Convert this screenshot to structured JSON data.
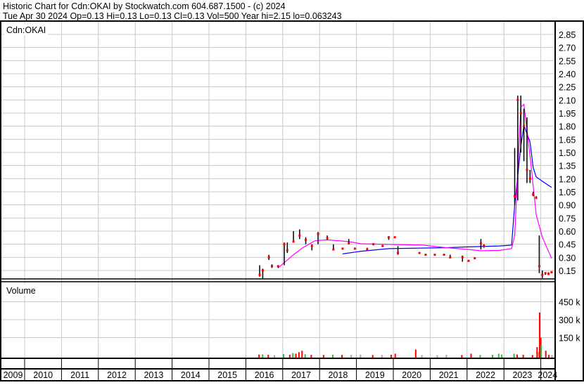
{
  "header": {
    "title": "Historic Chart for Cdn:OKAI by Stockwatch.com 604.687.1500 - (c) 2024",
    "quote": "Tue Apr 30 2024  Op=0.13  Hi=0.13  Lo=0.13  Cl=0.13  Vol=500  Year hi=2.15  lo=0.063243"
  },
  "chart_data": [
    {
      "type": "line",
      "title": "Cdn:OKAI",
      "ylim": [
        0,
        3.0
      ],
      "y_ticks": [
        "0.15",
        "0.30",
        "0.45",
        "0.60",
        "0.75",
        "0.90",
        "1.05",
        "1.20",
        "1.35",
        "1.50",
        "1.65",
        "1.80",
        "1.95",
        "2.10",
        "2.25",
        "2.40",
        "2.55",
        "2.70",
        "2.85"
      ],
      "x_ticks": [
        "2009",
        "2010",
        "2011",
        "2012",
        "2013",
        "2014",
        "2015",
        "2016",
        "2017",
        "2018",
        "2019",
        "2020",
        "2021",
        "2022",
        "2023",
        "2024"
      ],
      "xlim": [
        "2009-01",
        "2024-04-30"
      ],
      "grid": true,
      "colors": {
        "bar": "#000000",
        "close": "#ff0000",
        "ma_short": "#ff00ff",
        "ma_long": "#0000ff"
      },
      "price_bars_fields": [
        "date",
        "high",
        "low",
        "close"
      ],
      "price_bars": [
        [
          "2016-05",
          0.21,
          0.08,
          0.1
        ],
        [
          "2016-06",
          0.17,
          0.06,
          0.15
        ],
        [
          "2016-08",
          0.33,
          0.27,
          0.3
        ],
        [
          "2016-09",
          0.22,
          0.18,
          0.2
        ],
        [
          "2016-11",
          0.21,
          0.18,
          0.2
        ],
        [
          "2017-01",
          0.47,
          0.21,
          0.45
        ],
        [
          "2017-02",
          0.47,
          0.35,
          0.38
        ],
        [
          "2017-04",
          0.6,
          0.47,
          0.48
        ],
        [
          "2017-06",
          0.62,
          0.51,
          0.55
        ],
        [
          "2017-08",
          0.53,
          0.45,
          0.5
        ],
        [
          "2017-10",
          0.45,
          0.38,
          0.43
        ],
        [
          "2017-12",
          0.59,
          0.45,
          0.57
        ],
        [
          "2018-03",
          0.55,
          0.5,
          0.52
        ],
        [
          "2018-05",
          0.45,
          0.38,
          0.39
        ],
        [
          "2018-08",
          0.4,
          0.39,
          0.4
        ],
        [
          "2018-10",
          0.51,
          0.45,
          0.46
        ],
        [
          "2018-12",
          0.4,
          0.39,
          0.4
        ],
        [
          "2019-04",
          0.41,
          0.38,
          0.39
        ],
        [
          "2019-06",
          0.46,
          0.44,
          0.45
        ],
        [
          "2019-09",
          0.43,
          0.42,
          0.43
        ],
        [
          "2019-11",
          0.54,
          0.5,
          0.53
        ],
        [
          "2020-01",
          0.53,
          0.52,
          0.53
        ],
        [
          "2020-02",
          0.43,
          0.33,
          0.35
        ],
        [
          "2020-09",
          0.35,
          0.34,
          0.35
        ],
        [
          "2020-11",
          0.34,
          0.32,
          0.33
        ],
        [
          "2021-02",
          0.33,
          0.32,
          0.33
        ],
        [
          "2021-05",
          0.33,
          0.32,
          0.33
        ],
        [
          "2021-07",
          0.33,
          0.29,
          0.3
        ],
        [
          "2021-11",
          0.32,
          0.25,
          0.3
        ],
        [
          "2022-01",
          0.26,
          0.25,
          0.26
        ],
        [
          "2022-03",
          0.29,
          0.28,
          0.29
        ],
        [
          "2022-05",
          0.51,
          0.39,
          0.46
        ],
        [
          "2022-06",
          0.45,
          0.41,
          0.43
        ],
        [
          "2023-04",
          1.55,
          0.9,
          1.0
        ],
        [
          "2023-05",
          2.15,
          0.95,
          2.1
        ],
        [
          "2023-06",
          2.15,
          1.5,
          1.95
        ],
        [
          "2023-07",
          2.0,
          1.4,
          1.8
        ],
        [
          "2023-08",
          1.9,
          1.15,
          1.3
        ],
        [
          "2023-09",
          1.3,
          1.15,
          1.2
        ],
        [
          "2023-10",
          1.05,
          1.0,
          1.02
        ],
        [
          "2023-11",
          1.0,
          0.98,
          0.98
        ],
        [
          "2023-12",
          0.55,
          0.12,
          0.2
        ],
        [
          "2024-01",
          0.15,
          0.063,
          0.1
        ],
        [
          "2024-02",
          0.13,
          0.1,
          0.12
        ],
        [
          "2024-03",
          0.13,
          0.1,
          0.11
        ],
        [
          "2024-04",
          0.13,
          0.13,
          0.13
        ]
      ],
      "ma_short": [
        [
          "2016-11",
          0.18
        ],
        [
          "2017-04",
          0.33
        ],
        [
          "2017-07",
          0.41
        ],
        [
          "2017-11",
          0.49
        ],
        [
          "2018-03",
          0.5
        ],
        [
          "2018-10",
          0.48
        ],
        [
          "2019-02",
          0.455
        ],
        [
          "2020-10",
          0.44
        ],
        [
          "2021-06",
          0.41
        ],
        [
          "2022-01",
          0.39
        ],
        [
          "2022-05",
          0.375
        ],
        [
          "2022-11",
          0.38
        ],
        [
          "2023-03",
          0.4
        ],
        [
          "2023-04",
          0.55
        ],
        [
          "2023-06",
          2.02
        ],
        [
          "2023-07",
          2.05
        ],
        [
          "2023-09",
          1.46
        ],
        [
          "2023-11",
          0.79
        ],
        [
          "2024-01",
          0.53
        ],
        [
          "2024-04",
          0.29
        ]
      ],
      "ma_long": [
        [
          "2018-08",
          0.34
        ],
        [
          "2019-02",
          0.37
        ],
        [
          "2019-11",
          0.4
        ],
        [
          "2021-05",
          0.41
        ],
        [
          "2022-01",
          0.42
        ],
        [
          "2022-11",
          0.43
        ],
        [
          "2023-03",
          0.44
        ],
        [
          "2023-04",
          0.9
        ],
        [
          "2023-06",
          1.57
        ],
        [
          "2023-07",
          1.81
        ],
        [
          "2023-09",
          1.62
        ],
        [
          "2023-10",
          1.33
        ],
        [
          "2023-11",
          1.22
        ],
        [
          "2024-01",
          1.17
        ],
        [
          "2024-04",
          1.1
        ]
      ]
    },
    {
      "type": "bar",
      "title": "Volume",
      "ylim": [
        0,
        500
      ],
      "y_ticks": [
        "150 k",
        "300 k",
        "450 k"
      ],
      "units": "thousands",
      "colors": {
        "down": "#ff0000",
        "up": "#33bb33",
        "unchanged": "#aaaaaa"
      },
      "volume_fields": [
        "date",
        "volume_k",
        "direction"
      ],
      "volume": [
        [
          "2016-05-10",
          8,
          "down"
        ],
        [
          "2016-06-15",
          10,
          "up"
        ],
        [
          "2016-08-10",
          6,
          "down"
        ],
        [
          "2016-10-10",
          3,
          "unchanged"
        ],
        [
          "2017-01-10",
          12,
          "up"
        ],
        [
          "2017-03-10",
          6,
          "down"
        ],
        [
          "2017-04-10",
          20,
          "up"
        ],
        [
          "2017-05-10",
          15,
          "down"
        ],
        [
          "2017-06-10",
          28,
          "down"
        ],
        [
          "2017-07-10",
          40,
          "down"
        ],
        [
          "2017-08-10",
          10,
          "up"
        ],
        [
          "2017-10-10",
          5,
          "down"
        ],
        [
          "2018-02-10",
          4,
          "down"
        ],
        [
          "2018-05-10",
          6,
          "up"
        ],
        [
          "2018-08-10",
          5,
          "down"
        ],
        [
          "2018-11-10",
          6,
          "unchanged"
        ],
        [
          "2019-02-10",
          8,
          "unchanged"
        ],
        [
          "2019-06-10",
          4,
          "down"
        ],
        [
          "2019-09-10",
          5,
          "unchanged"
        ],
        [
          "2019-12-10",
          6,
          "down"
        ],
        [
          "2020-01-20",
          15,
          "down"
        ],
        [
          "2020-08-10",
          50,
          "down"
        ],
        [
          "2020-10-10",
          4,
          "unchanged"
        ],
        [
          "2021-03-10",
          3,
          "unchanged"
        ],
        [
          "2021-06-10",
          6,
          "unchanged"
        ],
        [
          "2021-11-10",
          4,
          "down"
        ],
        [
          "2022-02-10",
          15,
          "down"
        ],
        [
          "2022-05-10",
          4,
          "up"
        ],
        [
          "2022-09-10",
          5,
          "up"
        ],
        [
          "2022-11-10",
          15,
          "up"
        ],
        [
          "2022-12-10",
          8,
          "up"
        ],
        [
          "2023-04-10",
          15,
          "up"
        ],
        [
          "2023-05-10",
          8,
          "down"
        ],
        [
          "2023-07-10",
          6,
          "down"
        ],
        [
          "2023-10-10",
          4,
          "down"
        ],
        [
          "2023-11-25",
          70,
          "down"
        ],
        [
          "2023-12-10",
          30,
          "unchanged"
        ],
        [
          "2023-12-20",
          360,
          "down"
        ],
        [
          "2024-01-01",
          150,
          "down"
        ],
        [
          "2024-01-05",
          90,
          "up"
        ],
        [
          "2024-02-20",
          40,
          "down"
        ],
        [
          "2024-03-20",
          5,
          "down"
        ],
        [
          "2024-04-20",
          3,
          "unchanged"
        ]
      ]
    }
  ]
}
